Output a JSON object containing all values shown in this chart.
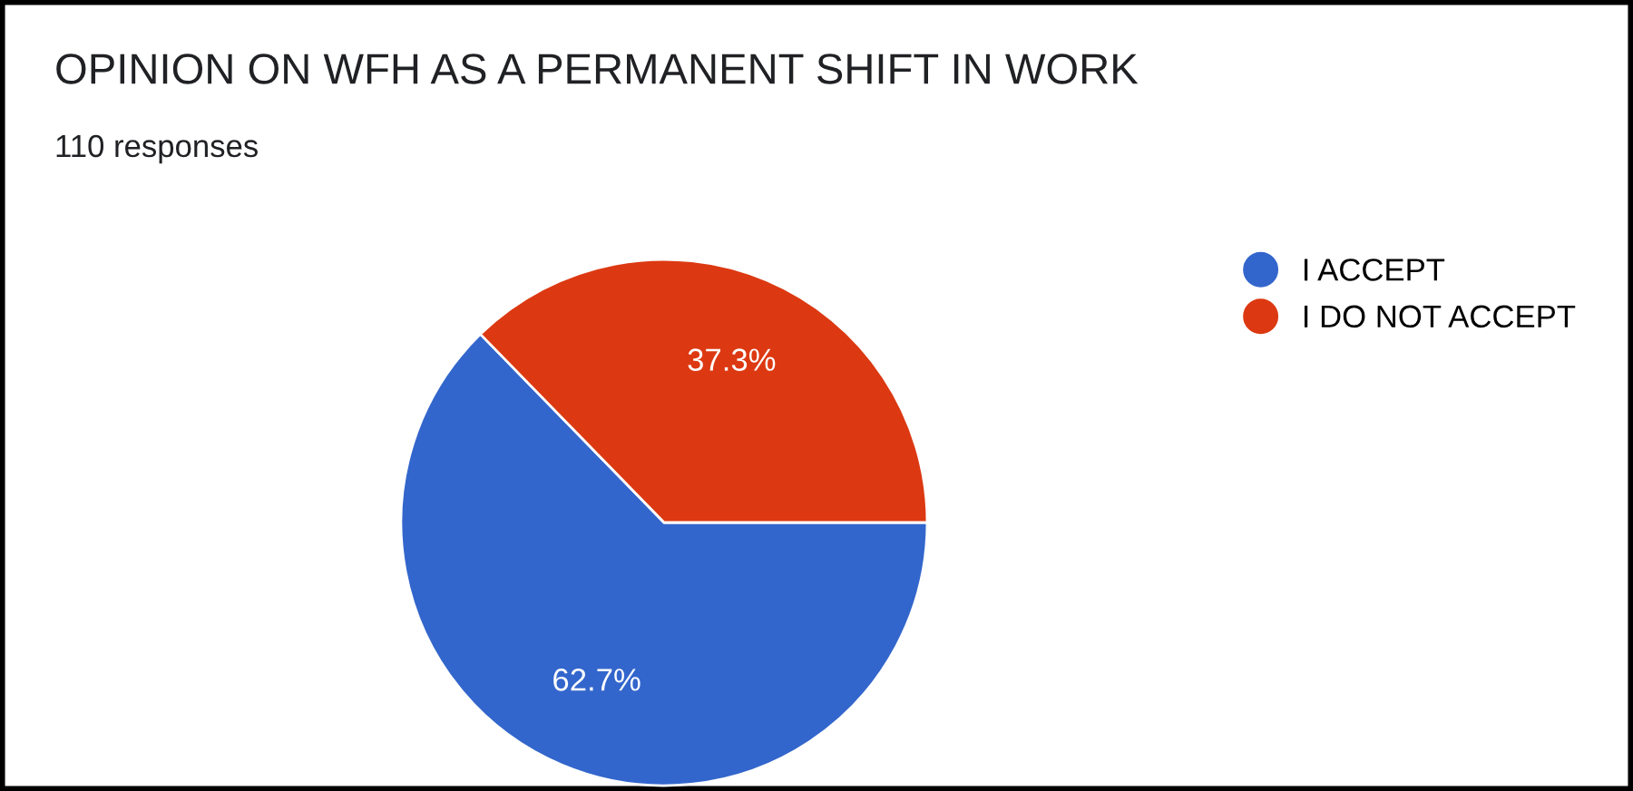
{
  "chart_data": {
    "type": "pie",
    "title": "OPINION ON WFH AS A PERMANENT SHIFT IN WORK",
    "subtitle": "110 responses",
    "categories": [
      "I ACCEPT",
      "I DO NOT ACCEPT"
    ],
    "values": [
      62.7,
      37.3
    ],
    "colors": [
      "#3366cc",
      "#dc3912"
    ],
    "value_labels": [
      "62.7%",
      "37.3%"
    ],
    "legend": "top right"
  }
}
